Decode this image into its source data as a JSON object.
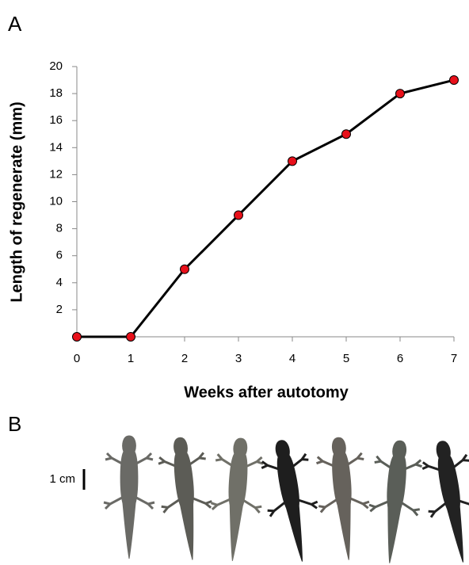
{
  "panel_labels": [
    "A",
    "B"
  ],
  "scale_bar_label": "1 cm",
  "chart_data": {
    "type": "line",
    "x_label": "Weeks after autotomy",
    "y_label": "Length of regenerate (mm)",
    "x": [
      0,
      1,
      2,
      3,
      4,
      5,
      6,
      7
    ],
    "series": [
      {
        "values": [
          0,
          0,
          5,
          9,
          13,
          15,
          18,
          19
        ],
        "color": "#000000",
        "marker_color": "#e8101a"
      }
    ],
    "xlim": [
      0,
      7
    ],
    "xticks": [
      0,
      1,
      2,
      3,
      4,
      5,
      6,
      7
    ],
    "ylim": [
      0,
      20
    ],
    "yticks": [
      2,
      4,
      6,
      8,
      10,
      12,
      14,
      16,
      18,
      20
    ]
  }
}
